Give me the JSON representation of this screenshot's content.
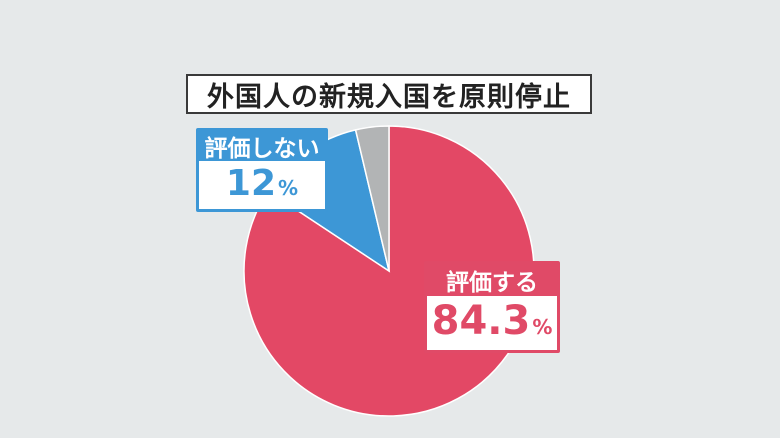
{
  "chart_data": {
    "type": "pie",
    "title": "外国人の新規入国を原則停止",
    "slices": [
      {
        "label": "評価する",
        "value": 84.3,
        "display": "84.3",
        "color": "#e34865"
      },
      {
        "label": "評価しない",
        "value": 12,
        "display": "12",
        "color": "#3d97d6"
      },
      {
        "label": "",
        "value": 3.7,
        "display": "",
        "color": "#b2b4b5"
      }
    ],
    "unit": "%"
  }
}
